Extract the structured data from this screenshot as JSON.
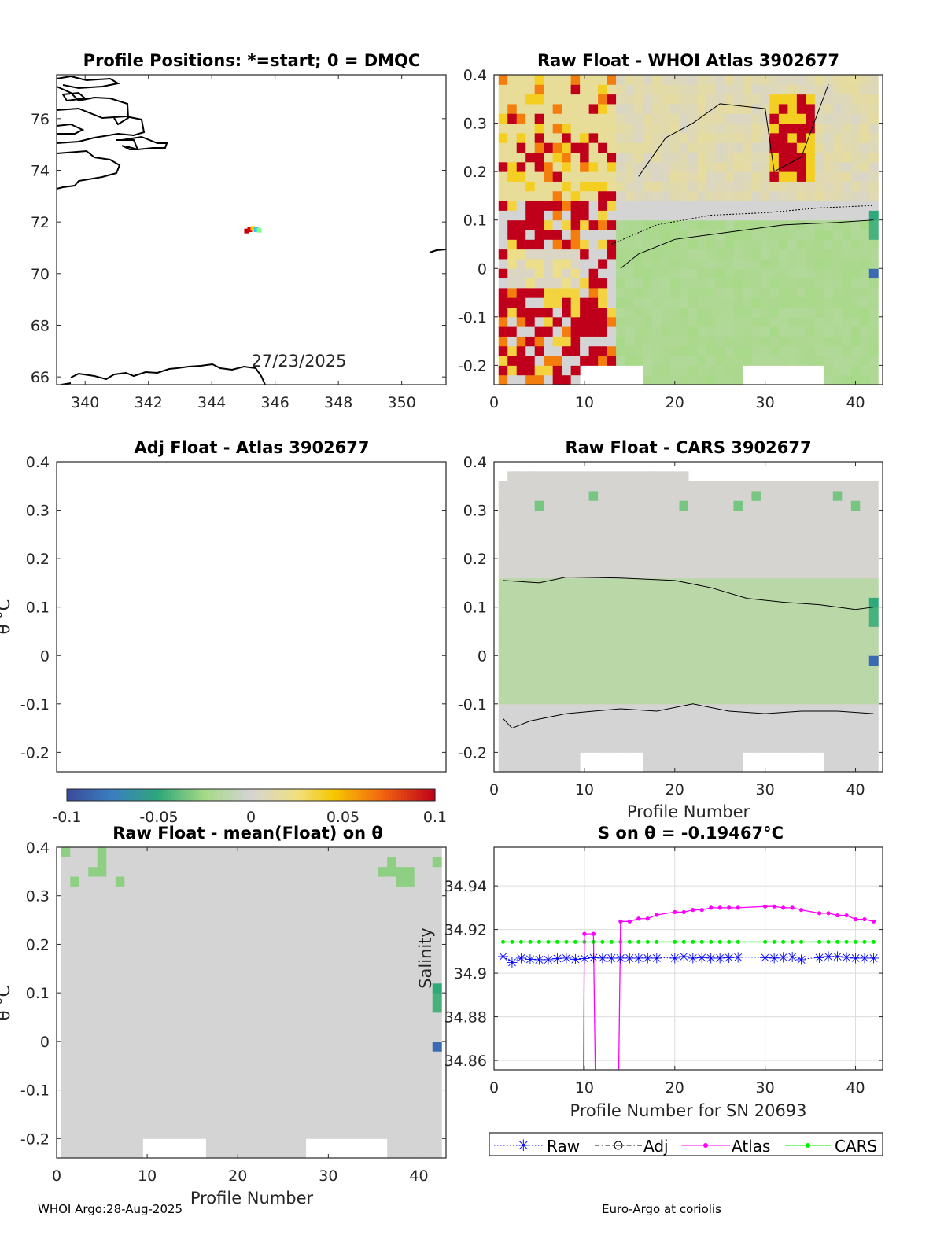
{
  "footer": {
    "left": "WHOI Argo:28-Aug-2025",
    "right": "Euro-Argo at coriolis"
  },
  "colorbar": {
    "range": [
      -0.1,
      0.1
    ],
    "ticks": [
      -0.1,
      -0.05,
      0,
      0.05,
      0.1
    ],
    "tick_labels": [
      "-0.1",
      "-0.05",
      "0",
      "0.05",
      "0.1"
    ]
  },
  "chart_data": [
    {
      "type": "scatter",
      "title": "Profile Positions: *=start; 0 = DMQC",
      "annotation": "27/23/2025",
      "xlim": [
        339.1,
        351.4
      ],
      "ylim": [
        65.7,
        77.7
      ],
      "xticks": [
        340,
        342,
        344,
        346,
        348,
        350
      ],
      "yticks": [
        66,
        68,
        70,
        72,
        74,
        76
      ],
      "positions": {
        "lon": [
          345.1,
          345.2,
          345.3,
          345.4,
          345.5
        ],
        "lat": [
          71.65,
          71.7,
          71.75,
          71.7,
          71.68
        ]
      }
    },
    {
      "type": "heatmap",
      "title": "Raw Float - WHOI Atlas  3902677",
      "xlim": [
        0,
        43
      ],
      "ylim": [
        -0.24,
        0.4
      ],
      "xticks": [
        0,
        10,
        20,
        30,
        40
      ],
      "yticks": [
        -0.2,
        -0.1,
        0,
        0.1,
        0.2,
        0.3,
        0.4
      ],
      "ytick_labels": [
        "-0.2",
        "-0.1",
        "0",
        "0.1",
        "0.2",
        "0.3",
        "0.4"
      ]
    },
    {
      "type": "heatmap",
      "title": "Adj Float - Atlas  3902677",
      "ylabel": "θ °C",
      "xlim": [
        0,
        43
      ],
      "ylim": [
        -0.24,
        0.4
      ],
      "xticks": [],
      "yticks": [
        -0.2,
        -0.1,
        0,
        0.1,
        0.2,
        0.3,
        0.4
      ],
      "ytick_labels": [
        "-0.2",
        "-0.1",
        "0",
        "0.1",
        "0.2",
        "0.3",
        "0.4"
      ]
    },
    {
      "type": "heatmap",
      "title": "Raw Float - CARS  3902677",
      "xlabel": "Profile Number",
      "xlim": [
        0,
        43
      ],
      "ylim": [
        -0.24,
        0.4
      ],
      "xticks": [
        0,
        10,
        20,
        30,
        40
      ],
      "yticks": [
        -0.2,
        -0.1,
        0,
        0.1,
        0.2,
        0.3,
        0.4
      ],
      "ytick_labels": [
        "-0.2",
        "-0.1",
        "0",
        "0.1",
        "0.2",
        "0.3",
        "0.4"
      ]
    },
    {
      "type": "heatmap",
      "title": "Raw Float - mean(Float) on θ",
      "xlabel": "Profile Number",
      "ylabel": "θ °C",
      "xlim": [
        0,
        43
      ],
      "ylim": [
        -0.24,
        0.4
      ],
      "xticks": [
        0,
        10,
        20,
        30,
        40
      ],
      "yticks": [
        -0.2,
        -0.1,
        0,
        0.1,
        0.2,
        0.3,
        0.4
      ],
      "ytick_labels": [
        "-0.2",
        "-0.1",
        "0",
        "0.1",
        "0.2",
        "0.3",
        "0.4"
      ]
    },
    {
      "type": "line",
      "title": "S on θ = -0.19467°C",
      "xlabel": "Profile Number for SN 20693",
      "ylabel": "Salinity",
      "xlim": [
        0,
        43
      ],
      "ylim": [
        34.8557,
        34.9577
      ],
      "xticks": [
        0,
        10,
        20,
        30,
        40
      ],
      "yticks": [
        34.86,
        34.88,
        34.9,
        34.92,
        34.94
      ],
      "ytick_labels": [
        "34.86",
        "34.88",
        "34.9",
        "34.92",
        "34.94"
      ],
      "grid": true,
      "legend": {
        "placement": "bottom",
        "entries": [
          "Raw",
          "Adj",
          "Atlas",
          "CARS"
        ]
      },
      "series": [
        {
          "name": "Raw",
          "color": "#0000ff",
          "x": [
            1,
            2,
            3,
            4,
            5,
            6,
            7,
            8,
            9,
            10,
            11,
            12,
            13,
            14,
            15,
            16,
            17,
            18,
            20,
            21,
            22,
            23,
            24,
            25,
            26,
            27,
            30,
            31,
            32,
            33,
            34,
            36,
            37,
            38,
            39,
            40,
            41,
            42
          ],
          "y": [
            34.9077,
            34.905,
            34.907,
            34.9066,
            34.9063,
            34.9063,
            34.9068,
            34.907,
            34.9065,
            34.9068,
            34.9072,
            34.907,
            34.907,
            34.907,
            34.907,
            34.907,
            34.907,
            34.907,
            34.907,
            34.9077,
            34.907,
            34.9072,
            34.907,
            34.907,
            34.9072,
            34.9074,
            34.9072,
            34.907,
            34.9074,
            34.9076,
            34.9064,
            34.9072,
            34.9077,
            34.9077,
            34.9074,
            34.907,
            34.907,
            34.907
          ]
        },
        {
          "name": "Adj",
          "color": "#000000",
          "x": [],
          "y": []
        },
        {
          "name": "Atlas",
          "color": "#ff00ff",
          "x": [
            10,
            11,
            14,
            15,
            16,
            17,
            18,
            20,
            21,
            22,
            23,
            24,
            25,
            26,
            27,
            30,
            31,
            32,
            33,
            34,
            36,
            37,
            38,
            39,
            40,
            41,
            42
          ],
          "y": [
            34.918,
            34.918,
            34.9237,
            34.9237,
            34.925,
            34.925,
            34.9267,
            34.928,
            34.928,
            34.929,
            34.929,
            34.93,
            34.93,
            34.93,
            34.93,
            34.9306,
            34.9306,
            34.93,
            34.93,
            34.929,
            34.9275,
            34.9275,
            34.9265,
            34.9265,
            34.9247,
            34.9247,
            34.9237
          ],
          "drops_below_axis_at": [
            9.9,
            11.2,
            13.8
          ]
        },
        {
          "name": "CARS",
          "color": "#00ee00",
          "x": [
            1,
            2,
            3,
            4,
            5,
            6,
            7,
            8,
            9,
            10,
            11,
            12,
            13,
            14,
            15,
            16,
            17,
            18,
            20,
            21,
            22,
            23,
            24,
            25,
            26,
            27,
            30,
            31,
            32,
            33,
            34,
            36,
            37,
            38,
            39,
            40,
            41,
            42
          ],
          "y": [
            34.9143,
            34.9143,
            34.9143,
            34.9143,
            34.9143,
            34.9143,
            34.9143,
            34.9143,
            34.9143,
            34.9143,
            34.9143,
            34.9143,
            34.9143,
            34.9143,
            34.9143,
            34.9143,
            34.9143,
            34.9143,
            34.9143,
            34.9143,
            34.9143,
            34.9143,
            34.9143,
            34.9143,
            34.9143,
            34.9143,
            34.9143,
            34.9143,
            34.9143,
            34.9143,
            34.9143,
            34.9143,
            34.9143,
            34.9143,
            34.9143,
            34.9143,
            34.9143,
            34.9143
          ]
        }
      ]
    }
  ]
}
